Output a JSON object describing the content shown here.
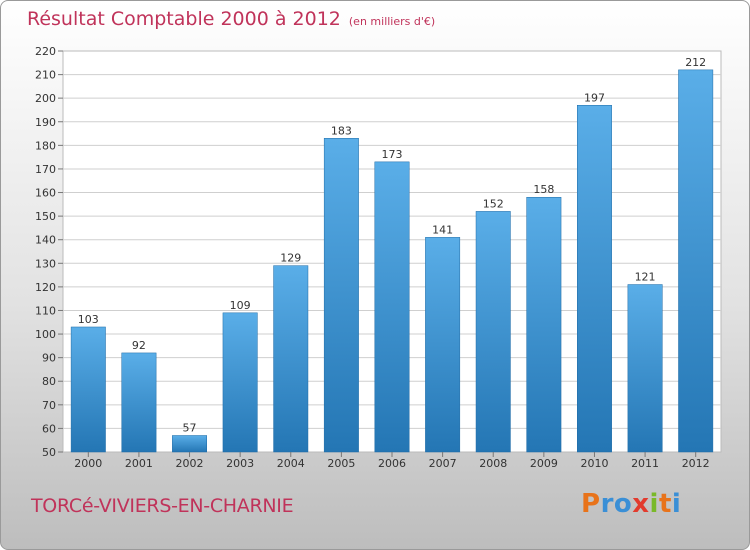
{
  "header": {
    "title": "Résultat Comptable 2000 à 2012",
    "unit": "(en milliers d'€)"
  },
  "footer": {
    "commune": "TORCé-VIVIERS-EN-CHARNIE",
    "logo_text": "Proxiti",
    "logo_colors": [
      "#e8731a",
      "#3a8fd6",
      "#3a8fd6",
      "#e23b2e",
      "#7ab929",
      "#e8731a",
      "#3a8fd6"
    ]
  },
  "colors": {
    "title": "#c0335a",
    "bar_top": "#5aaee8",
    "bar_bottom": "#2476b4",
    "grid": "#cfcfcf",
    "text": "#333333"
  },
  "chart_data": {
    "type": "bar",
    "title": "Résultat Comptable 2000 à 2012",
    "subtitle": "(en milliers d'€)",
    "categories": [
      "2000",
      "2001",
      "2002",
      "2003",
      "2004",
      "2005",
      "2006",
      "2007",
      "2008",
      "2009",
      "2010",
      "2011",
      "2012"
    ],
    "values": [
      103,
      92,
      57,
      109,
      129,
      183,
      173,
      141,
      152,
      158,
      197,
      121,
      212
    ],
    "ylim": [
      50,
      220
    ],
    "yticks": [
      50,
      60,
      70,
      80,
      90,
      100,
      110,
      120,
      130,
      140,
      150,
      160,
      170,
      180,
      190,
      200,
      210,
      220
    ],
    "grid": true,
    "data_labels": true
  }
}
